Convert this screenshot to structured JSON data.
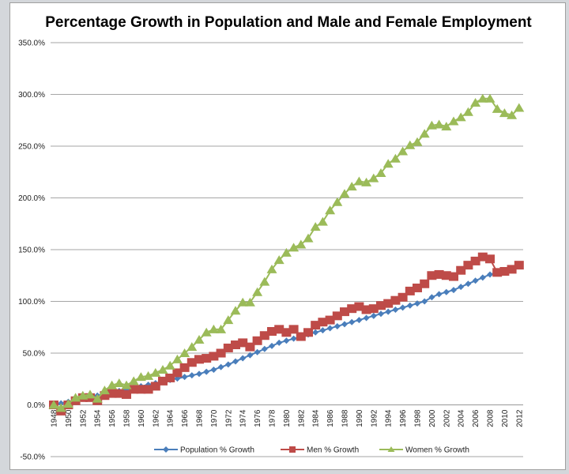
{
  "chart_data": {
    "type": "line",
    "title": "Percentage Growth in Population and Male and Female Employment",
    "xlabel": "",
    "ylabel": "",
    "ylim": [
      -50,
      350
    ],
    "yticks": [
      "350.0%",
      "300.0%",
      "250.0%",
      "200.0%",
      "150.0%",
      "100.0%",
      "50.0%",
      "0.0%",
      "-50.0%"
    ],
    "ytick_values": [
      350,
      300,
      250,
      200,
      150,
      100,
      50,
      0,
      -50
    ],
    "grid": true,
    "legend_position": "bottom",
    "x": [
      1948,
      1949,
      1950,
      1951,
      1952,
      1953,
      1954,
      1955,
      1956,
      1957,
      1958,
      1959,
      1960,
      1961,
      1962,
      1963,
      1964,
      1965,
      1966,
      1967,
      1968,
      1969,
      1970,
      1971,
      1972,
      1973,
      1974,
      1975,
      1976,
      1977,
      1978,
      1979,
      1980,
      1981,
      1982,
      1983,
      1984,
      1985,
      1986,
      1987,
      1988,
      1989,
      1990,
      1991,
      1992,
      1993,
      1994,
      1995,
      1996,
      1997,
      1998,
      1999,
      2000,
      2001,
      2002,
      2003,
      2004,
      2005,
      2006,
      2007,
      2008,
      2009,
      2010,
      2011,
      2012
    ],
    "xtick_labels": [
      "1948",
      "1950",
      "1952",
      "1954",
      "1956",
      "1958",
      "1960",
      "1962",
      "1964",
      "1966",
      "1968",
      "1970",
      "1972",
      "1974",
      "1976",
      "1978",
      "1980",
      "1982",
      "1984",
      "1986",
      "1988",
      "1990",
      "1992",
      "1994",
      "1996",
      "1998",
      "2000",
      "2002",
      "2004",
      "2006",
      "2008",
      "2010",
      "2012"
    ],
    "series": [
      {
        "name": "Population % Growth",
        "color": "#4a7ebb",
        "marker": "diamond",
        "values": [
          0,
          1.5,
          3,
          4.5,
          6,
          7.5,
          9,
          10.5,
          12,
          13.5,
          15,
          16.5,
          18,
          19.5,
          21,
          22.5,
          24,
          25.5,
          27,
          28.5,
          30,
          32,
          34,
          36.5,
          39,
          42,
          45,
          48,
          51,
          54,
          57,
          60,
          62,
          64,
          66,
          68,
          70,
          72,
          74,
          76,
          78,
          80,
          82,
          84,
          86,
          88,
          90,
          92,
          94,
          96,
          98,
          100,
          104,
          107,
          109,
          111,
          114,
          117,
          120,
          123,
          126,
          128,
          130,
          132,
          135
        ]
      },
      {
        "name": "Men % Growth",
        "color": "#be4b48",
        "marker": "square",
        "values": [
          0,
          -6,
          0,
          4,
          7,
          7,
          4,
          9,
          11,
          11,
          10,
          15,
          15,
          15,
          18,
          23,
          26,
          31,
          36,
          41,
          44,
          45,
          47,
          50,
          55,
          58,
          60,
          56,
          62,
          67,
          71,
          73,
          70,
          73,
          66,
          70,
          77,
          80,
          82,
          86,
          90,
          93,
          95,
          92,
          93,
          96,
          98,
          101,
          104,
          110,
          113,
          117,
          125,
          126,
          125,
          124,
          130,
          135,
          139,
          143,
          141,
          128,
          129,
          131,
          135
        ]
      },
      {
        "name": "Women % Growth",
        "color": "#9bbb59",
        "marker": "triangle",
        "values": [
          0,
          -3,
          1,
          7,
          9,
          10,
          6,
          14,
          19,
          21,
          19,
          23,
          27,
          28,
          31,
          34,
          38,
          44,
          50,
          56,
          63,
          70,
          73,
          73,
          82,
          91,
          99,
          99,
          109,
          119,
          131,
          140,
          147,
          152,
          155,
          161,
          172,
          177,
          188,
          196,
          204,
          211,
          216,
          215,
          219,
          224,
          233,
          238,
          245,
          251,
          254,
          262,
          270,
          271,
          269,
          274,
          278,
          283,
          292,
          296,
          296,
          286,
          282,
          280,
          287
        ]
      }
    ]
  }
}
